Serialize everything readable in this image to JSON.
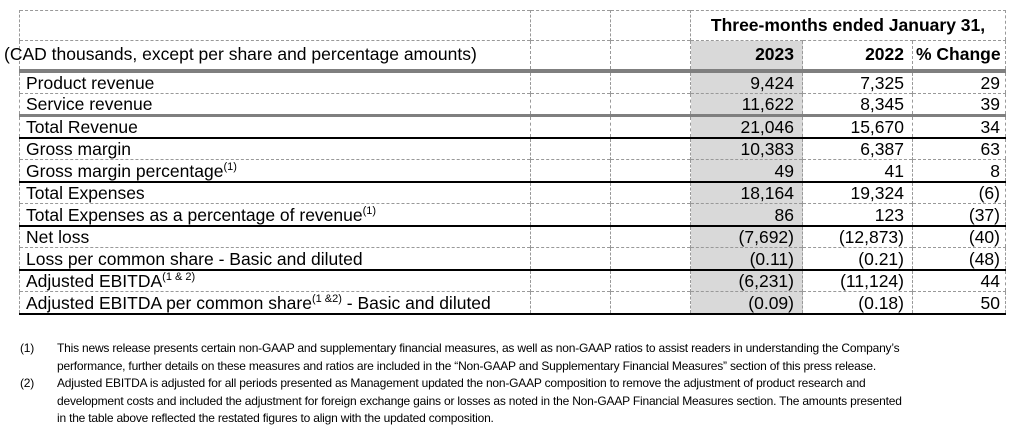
{
  "table": {
    "period_header": "Three-months ended January 31,",
    "units_note": "(CAD thousands, except per share and percentage amounts)",
    "columns": {
      "y2023": "2023",
      "y2022": "2022",
      "change": "% Change"
    },
    "rows": [
      {
        "label": "Product revenue",
        "y2023": "9,424",
        "y2022": "7,325",
        "change": "29",
        "sep": "none"
      },
      {
        "label": "Service revenue",
        "y2023": "11,622",
        "y2022": "8,345",
        "change": "39",
        "sep": "dashed"
      },
      {
        "label": "Total Revenue",
        "y2023": "21,046",
        "y2022": "15,670",
        "change": "34",
        "sep": "thick"
      },
      {
        "label": "Gross margin",
        "y2023": "10,383",
        "y2022": "6,387",
        "change": "63",
        "sep": "black"
      },
      {
        "label": "Gross margin percentage",
        "sup": "(1)",
        "y2023": "49",
        "y2022": "41",
        "change": "8",
        "sep": "dashed"
      },
      {
        "label": "Total Expenses",
        "y2023": "18,164",
        "y2022": "19,324",
        "change": "(6)",
        "sep": "black"
      },
      {
        "label": "Total Expenses as a percentage of revenue",
        "sup": "(1)",
        "y2023": "86",
        "y2022": "123",
        "change": "(37)",
        "sep": "dashed"
      },
      {
        "label": "Net loss",
        "y2023": "(7,692)",
        "y2022": "(12,873)",
        "change": "(40)",
        "sep": "black"
      },
      {
        "label": "Loss per common share - Basic and diluted",
        "y2023": "(0.11)",
        "y2022": "(0.21)",
        "change": "(48)",
        "sep": "dashed"
      },
      {
        "label": "Adjusted EBITDA",
        "sup": "(1 & 2)",
        "y2023": "(6,231)",
        "y2022": "(11,124)",
        "change": "44",
        "sep": "black"
      },
      {
        "label": "Adjusted EBITDA per common share",
        "sup": "(1 &2)",
        "suffix": " - Basic and diluted",
        "y2023": "(0.09)",
        "y2022": "(0.18)",
        "change": "50",
        "sep": "dashed"
      }
    ]
  },
  "footnotes": [
    {
      "marker": "(1)",
      "text": "This news release presents certain non-GAAP and supplementary financial measures, as well as non-GAAP ratios to assist readers in understanding the Company’s performance, further details on these measures and ratios are included in the “Non-GAAP and Supplementary Financial Measures” section of this press release."
    },
    {
      "marker": "(2)",
      "text": "Adjusted EBITDA is adjusted for all periods presented as Management updated the non-GAAP composition to remove the adjustment of product research and development costs and included the adjustment for foreign exchange gains or losses as noted in the Non-GAAP Financial Measures section. The amounts presented in the table above reflected the restated figures to align with the updated composition."
    }
  ],
  "colors": {
    "highlight_column_bg": "#d9d9d9",
    "thick_rule": "#7f7f7f",
    "grid_dash": "#999999",
    "black_rule": "#000000"
  }
}
